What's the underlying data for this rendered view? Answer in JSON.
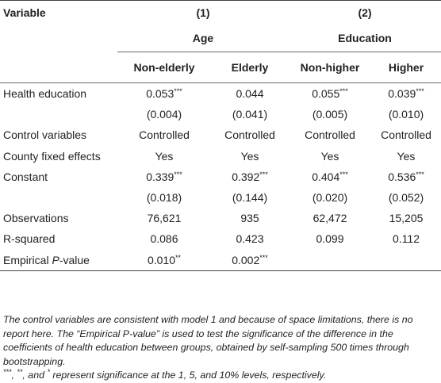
{
  "header": {
    "variable_label": "Variable",
    "group1_number": "(1)",
    "group1_name": "Age",
    "group2_number": "(2)",
    "group2_name": "Education",
    "columns": [
      "Non-elderly",
      "Elderly",
      "Non-higher",
      "Higher"
    ]
  },
  "rows": [
    {
      "label": "Health education",
      "cells": [
        {
          "v": "0.053",
          "s": "***"
        },
        {
          "v": "0.044",
          "s": ""
        },
        {
          "v": "0.055",
          "s": "***"
        },
        {
          "v": "0.039",
          "s": "***"
        }
      ]
    },
    {
      "label": "",
      "cells": [
        {
          "v": "(0.004)",
          "s": ""
        },
        {
          "v": "(0.041)",
          "s": ""
        },
        {
          "v": "(0.005)",
          "s": ""
        },
        {
          "v": "(0.010)",
          "s": ""
        }
      ]
    },
    {
      "label": "Control variables",
      "cells": [
        {
          "v": "Controlled",
          "s": ""
        },
        {
          "v": "Controlled",
          "s": ""
        },
        {
          "v": "Controlled",
          "s": ""
        },
        {
          "v": "Controlled",
          "s": ""
        }
      ]
    },
    {
      "label": "County fixed effects",
      "cells": [
        {
          "v": "Yes",
          "s": ""
        },
        {
          "v": "Yes",
          "s": ""
        },
        {
          "v": "Yes",
          "s": ""
        },
        {
          "v": "Yes",
          "s": ""
        }
      ]
    },
    {
      "label": "Constant",
      "cells": [
        {
          "v": "0.339",
          "s": "***"
        },
        {
          "v": "0.392",
          "s": "***"
        },
        {
          "v": "0.404",
          "s": "***"
        },
        {
          "v": "0.536",
          "s": "***"
        }
      ]
    },
    {
      "label": "",
      "cells": [
        {
          "v": "(0.018)",
          "s": ""
        },
        {
          "v": "(0.144)",
          "s": ""
        },
        {
          "v": "(0.020)",
          "s": ""
        },
        {
          "v": "(0.052)",
          "s": ""
        }
      ]
    },
    {
      "label": "Observations",
      "cells": [
        {
          "v": "76,621",
          "s": ""
        },
        {
          "v": "935",
          "s": ""
        },
        {
          "v": "62,472",
          "s": ""
        },
        {
          "v": "15,205",
          "s": ""
        }
      ]
    },
    {
      "label": "R-squared",
      "cells": [
        {
          "v": "0.086",
          "s": ""
        },
        {
          "v": "0.423",
          "s": ""
        },
        {
          "v": "0.099",
          "s": ""
        },
        {
          "v": "0.112",
          "s": ""
        }
      ]
    },
    {
      "label_parts": [
        "Empirical ",
        "P",
        "-value"
      ],
      "cells": [
        {
          "v": "0.010",
          "s": "**"
        },
        {
          "v": "0.002",
          "s": "***"
        },
        {
          "v": "",
          "s": ""
        },
        {
          "v": "",
          "s": ""
        }
      ]
    }
  ],
  "notes": {
    "paragraph1": "The control variables are consistent with model 1 and because of space limitations, there is no report here. The “Empirical P-value” is used to test the significance of the difference in the coefficients of health education between groups, obtained by self-sampling 500 times through bootstrapping.",
    "paragraph2_parts": [
      "***",
      ", ",
      "**",
      ", and ",
      "*",
      " represent significance at the 1, 5, and 10% levels, respectively."
    ]
  }
}
